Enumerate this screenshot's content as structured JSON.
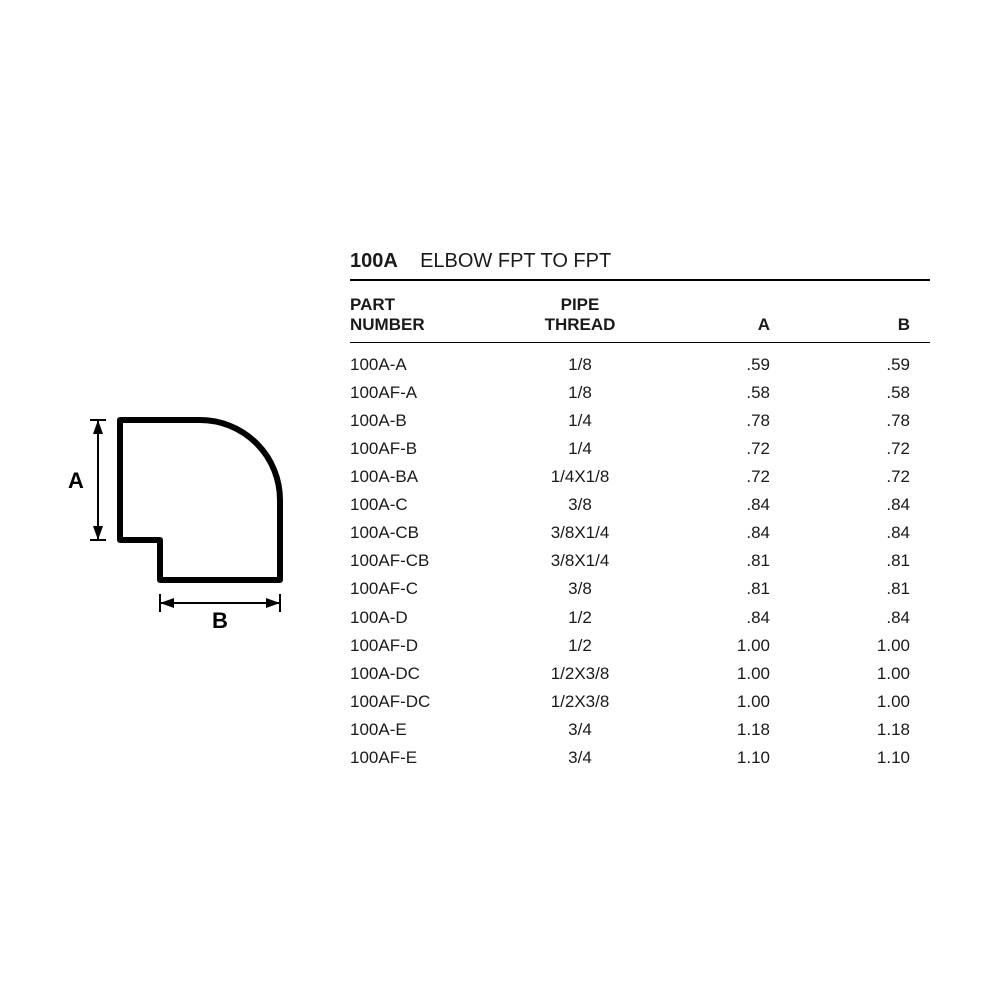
{
  "title": {
    "code": "100A",
    "desc": "ELBOW FPT TO FPT"
  },
  "columns": {
    "part": "PART\nNUMBER",
    "pipe": "PIPE\nTHREAD",
    "a": "A",
    "b": "B"
  },
  "rows": [
    {
      "part": "100A-A",
      "pipe": "1/8",
      "a": ".59",
      "b": ".59"
    },
    {
      "part": "100AF-A",
      "pipe": "1/8",
      "a": ".58",
      "b": ".58"
    },
    {
      "part": "100A-B",
      "pipe": "1/4",
      "a": ".78",
      "b": ".78"
    },
    {
      "part": "100AF-B",
      "pipe": "1/4",
      "a": ".72",
      "b": ".72"
    },
    {
      "part": "100A-BA",
      "pipe": "1/4X1/8",
      "a": ".72",
      "b": ".72"
    },
    {
      "part": "100A-C",
      "pipe": "3/8",
      "a": ".84",
      "b": ".84"
    },
    {
      "part": "100A-CB",
      "pipe": "3/8X1/4",
      "a": ".84",
      "b": ".84"
    },
    {
      "part": "100AF-CB",
      "pipe": "3/8X1/4",
      "a": ".81",
      "b": ".81"
    },
    {
      "part": "100AF-C",
      "pipe": "3/8",
      "a": ".81",
      "b": ".81"
    },
    {
      "part": "100A-D",
      "pipe": "1/2",
      "a": ".84",
      "b": ".84"
    },
    {
      "part": "100AF-D",
      "pipe": "1/2",
      "a": "1.00",
      "b": "1.00"
    },
    {
      "part": "100A-DC",
      "pipe": "1/2X3/8",
      "a": "1.00",
      "b": "1.00"
    },
    {
      "part": "100AF-DC",
      "pipe": "1/2X3/8",
      "a": "1.00",
      "b": "1.00"
    },
    {
      "part": "100A-E",
      "pipe": "3/4",
      "a": "1.18",
      "b": "1.18"
    },
    {
      "part": "100AF-E",
      "pipe": "3/4",
      "a": "1.10",
      "b": "1.10"
    }
  ],
  "diagram": {
    "label_a": "A",
    "label_b": "B",
    "stroke": "#000000",
    "stroke_width": 5
  }
}
